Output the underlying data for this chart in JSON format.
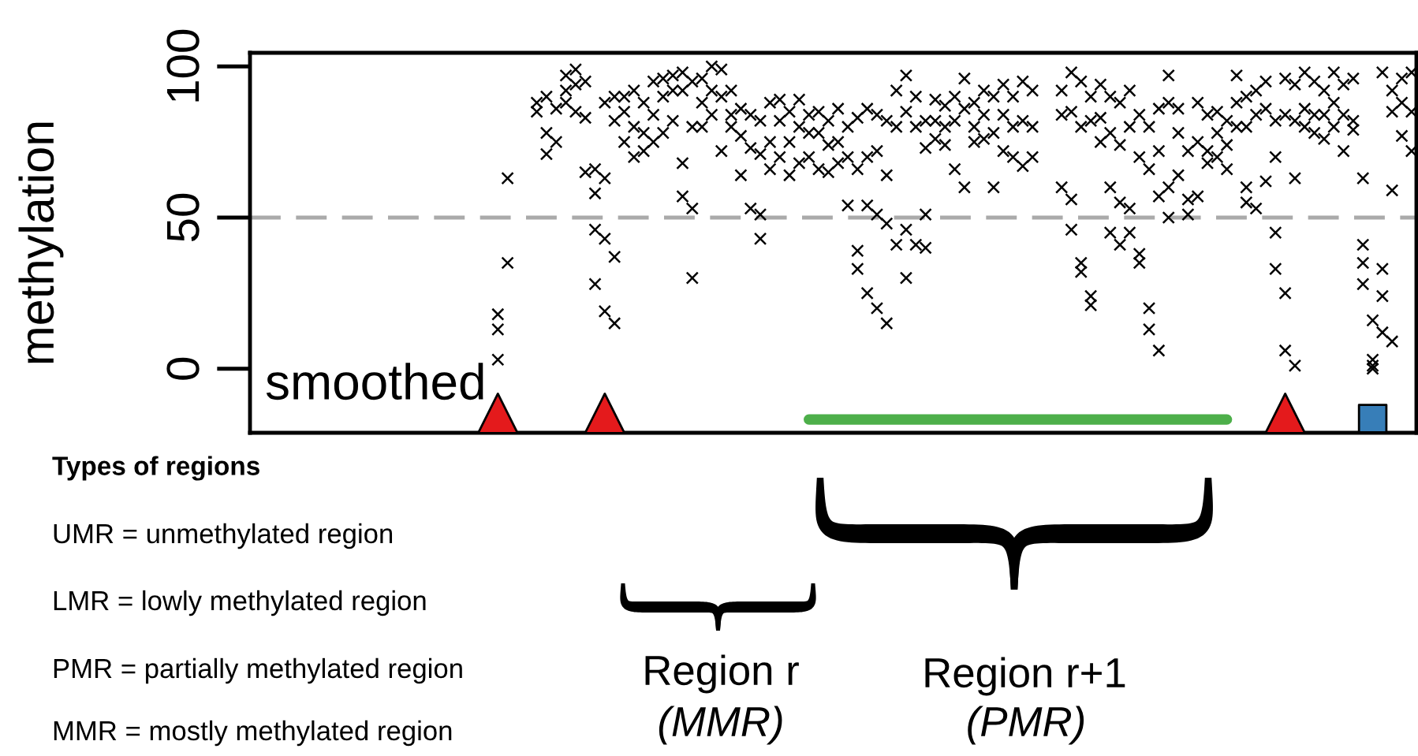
{
  "chart_data": {
    "type": "scatter",
    "ylabel": "methylation",
    "marker": "cross",
    "tick_labels": "y",
    "ylim": [
      -21.2,
      104.5
    ],
    "yticks": [
      0,
      50,
      100
    ],
    "categories": [
      null,
      null,
      null,
      null,
      null,
      null,
      null,
      null,
      null,
      null,
      null,
      null,
      null,
      null,
      null,
      null,
      null,
      null,
      null,
      null,
      null,
      null,
      null,
      null,
      null,
      null,
      null,
      null,
      null,
      null,
      null,
      null,
      null,
      null,
      null,
      null,
      null,
      null,
      null,
      null,
      null,
      null,
      null,
      null,
      null,
      null,
      null,
      null,
      null,
      null,
      null,
      null,
      null,
      null,
      null,
      null,
      null,
      null,
      null,
      null,
      null,
      null,
      null,
      null,
      null,
      null,
      null,
      null,
      null,
      null,
      null,
      null,
      null,
      null,
      null,
      null,
      null,
      null,
      null,
      null,
      null,
      null,
      null,
      null,
      null,
      null,
      null,
      null,
      null,
      null,
      null,
      null,
      null,
      null,
      null,
      null,
      null,
      null,
      null,
      null,
      null,
      null,
      null,
      null,
      null,
      null,
      null,
      null,
      null,
      null,
      null,
      null,
      null,
      null,
      null,
      null,
      null,
      null,
      null,
      null
    ],
    "series": [
      {
        "color": "#000000",
        "values": [
          null,
          null,
          null,
          null,
          null,
          null,
          null,
          null,
          null,
          null,
          null,
          null,
          null,
          null,
          null,
          null,
          null,
          null,
          null,
          null,
          null,
          null,
          null,
          null,
          null,
          18,
          63,
          null,
          null,
          88,
          90,
          86,
          97,
          99,
          95,
          66,
          88,
          90,
          90,
          92,
          88,
          95,
          96,
          97,
          98,
          95,
          96,
          100,
          99,
          92,
          86,
          84,
          82,
          88,
          89,
          85,
          89,
          84,
          85,
          82,
          86,
          80,
          83,
          86,
          84,
          82,
          92,
          97,
          90,
          82,
          89,
          87,
          90,
          96,
          88,
          92,
          90,
          94,
          90,
          95,
          92,
          null,
          null,
          92,
          98,
          95,
          90,
          94,
          90,
          88,
          92,
          84,
          80,
          86,
          97,
          86,
          72,
          88,
          84,
          85,
          82,
          97,
          90,
          92,
          95,
          82,
          96,
          94,
          98,
          95,
          92,
          98,
          94,
          96,
          63,
          16,
          98,
          92,
          96,
          98
        ]
      },
      {
        "color": "#000000",
        "values": [
          null,
          null,
          null,
          null,
          null,
          null,
          null,
          null,
          null,
          null,
          null,
          null,
          null,
          null,
          null,
          null,
          null,
          null,
          null,
          null,
          null,
          null,
          null,
          null,
          null,
          13,
          35,
          null,
          null,
          85,
          78,
          75,
          92,
          94,
          83,
          58,
          63,
          82,
          85,
          80,
          78,
          84,
          90,
          92,
          92,
          80,
          88,
          92,
          90,
          84,
          77,
          73,
          71,
          75,
          82,
          75,
          80,
          78,
          78,
          74,
          75,
          70,
          66,
          70,
          72,
          64,
          80,
          85,
          80,
          73,
          82,
          80,
          82,
          86,
          80,
          84,
          78,
          84,
          80,
          82,
          80,
          null,
          null,
          84,
          85,
          80,
          82,
          83,
          78,
          74,
          80,
          70,
          66,
          72,
          88,
          78,
          56,
          75,
          72,
          78,
          74,
          88,
          80,
          84,
          86,
          70,
          84,
          82,
          86,
          84,
          84,
          88,
          84,
          82,
          41,
          3,
          12,
          85,
          88,
          85
        ]
      },
      {
        "color": "#000000",
        "values": [
          null,
          null,
          null,
          null,
          null,
          null,
          null,
          null,
          null,
          null,
          null,
          null,
          null,
          null,
          null,
          null,
          null,
          null,
          null,
          null,
          null,
          null,
          null,
          null,
          null,
          3,
          null,
          null,
          null,
          null,
          71,
          null,
          88,
          85,
          65,
          46,
          43,
          37,
          75,
          70,
          72,
          75,
          78,
          82,
          68,
          53,
          80,
          84,
          72,
          80,
          64,
          53,
          51,
          66,
          70,
          64,
          68,
          70,
          66,
          65,
          68,
          54,
          39,
          54,
          51,
          48,
          41,
          46,
          41,
          51,
          76,
          74,
          66,
          60,
          75,
          76,
          60,
          72,
          70,
          67,
          70,
          null,
          null,
          60,
          56,
          35,
          24,
          75,
          60,
          55,
          53,
          38,
          20,
          57,
          60,
          64,
          51,
          57,
          68,
          70,
          66,
          80,
          60,
          53,
          62,
          45,
          25,
          1,
          80,
          78,
          76,
          80,
          72,
          79,
          35,
          1,
          33,
          9,
          77,
          72
        ]
      },
      {
        "color": "#000000",
        "values": [
          null,
          null,
          null,
          null,
          null,
          null,
          null,
          null,
          null,
          null,
          null,
          null,
          null,
          null,
          null,
          null,
          null,
          null,
          null,
          null,
          null,
          null,
          null,
          null,
          null,
          null,
          null,
          null,
          null,
          null,
          null,
          null,
          null,
          null,
          null,
          28,
          19,
          15,
          null,
          null,
          null,
          null,
          null,
          null,
          57,
          30,
          null,
          null,
          null,
          null,
          null,
          null,
          43,
          null,
          null,
          null,
          null,
          null,
          null,
          null,
          null,
          null,
          33,
          25,
          20,
          15,
          null,
          30,
          null,
          40,
          null,
          null,
          null,
          null,
          null,
          null,
          null,
          null,
          null,
          null,
          null,
          null,
          null,
          null,
          46,
          32,
          21,
          null,
          45,
          41,
          45,
          35,
          13,
          6,
          50,
          null,
          null,
          null,
          null,
          null,
          null,
          null,
          55,
          null,
          null,
          33,
          6,
          63,
          null,
          null,
          null,
          null,
          null,
          null,
          28,
          0,
          24,
          59,
          null,
          null
        ]
      },
      {
        "type": "scatter",
        "marker": "triangle",
        "color": "#e41a1c",
        "values": [
          null,
          null,
          null,
          null,
          null,
          null,
          null,
          null,
          null,
          null,
          null,
          null,
          null,
          null,
          null,
          null,
          null,
          null,
          null,
          null,
          null,
          null,
          null,
          null,
          null,
          -14.8,
          null,
          null,
          null,
          null,
          null,
          null,
          null,
          null,
          null,
          null,
          -14.8,
          null,
          null,
          null,
          null,
          null,
          null,
          null,
          null,
          null,
          null,
          null,
          null,
          null,
          null,
          null,
          null,
          null,
          null,
          null,
          null,
          null,
          null,
          null,
          null,
          null,
          null,
          null,
          null,
          null,
          null,
          null,
          null,
          null,
          null,
          null,
          null,
          null,
          null,
          null,
          null,
          null,
          null,
          null,
          null,
          null,
          null,
          null,
          null,
          null,
          null,
          null,
          null,
          null,
          null,
          null,
          null,
          null,
          null,
          null,
          null,
          null,
          null,
          null,
          null,
          null,
          null,
          null,
          null,
          null,
          -14.8,
          null,
          null,
          null,
          null,
          null,
          null,
          null,
          null,
          null,
          null,
          null,
          null,
          null
        ]
      },
      {
        "type": "line",
        "marker": "none",
        "color": "#4daf4a",
        "values": [
          null,
          null,
          null,
          null,
          null,
          null,
          null,
          null,
          null,
          null,
          null,
          null,
          null,
          null,
          null,
          null,
          null,
          null,
          null,
          null,
          null,
          null,
          null,
          null,
          null,
          null,
          null,
          null,
          null,
          null,
          null,
          null,
          null,
          null,
          null,
          null,
          null,
          null,
          null,
          null,
          null,
          null,
          null,
          null,
          null,
          null,
          null,
          null,
          null,
          null,
          null,
          null,
          null,
          null,
          null,
          null,
          null,
          -16.8,
          -16.8,
          -16.8,
          -16.8,
          -16.8,
          -16.8,
          -16.8,
          -16.8,
          -16.8,
          -16.8,
          -16.8,
          -16.8,
          -16.8,
          -16.8,
          -16.8,
          -16.8,
          -16.8,
          -16.8,
          -16.8,
          -16.8,
          -16.8,
          -16.8,
          -16.8,
          -16.8,
          -16.8,
          -16.8,
          -16.8,
          -16.8,
          -16.8,
          -16.8,
          -16.8,
          -16.8,
          -16.8,
          -16.8,
          -16.8,
          -16.8,
          -16.8,
          -16.8,
          -16.8,
          -16.8,
          -16.8,
          -16.8,
          -16.8,
          -16.8,
          null,
          null,
          null,
          null,
          null,
          null,
          null,
          null,
          null,
          null,
          null,
          null,
          null,
          null,
          null,
          null,
          null,
          null,
          null
        ]
      },
      {
        "type": "scatter",
        "marker": "square",
        "color": "#377eb8",
        "values": [
          null,
          null,
          null,
          null,
          null,
          null,
          null,
          null,
          null,
          null,
          null,
          null,
          null,
          null,
          null,
          null,
          null,
          null,
          null,
          null,
          null,
          null,
          null,
          null,
          null,
          null,
          null,
          null,
          null,
          null,
          null,
          null,
          null,
          null,
          null,
          null,
          null,
          null,
          null,
          null,
          null,
          null,
          null,
          null,
          null,
          null,
          null,
          null,
          null,
          null,
          null,
          null,
          null,
          null,
          null,
          null,
          null,
          null,
          null,
          null,
          null,
          null,
          null,
          null,
          null,
          null,
          null,
          null,
          null,
          null,
          null,
          null,
          null,
          null,
          null,
          null,
          null,
          null,
          null,
          null,
          null,
          null,
          null,
          null,
          null,
          null,
          null,
          null,
          null,
          null,
          null,
          null,
          null,
          null,
          null,
          null,
          null,
          null,
          null,
          null,
          null,
          null,
          null,
          null,
          null,
          null,
          null,
          null,
          null,
          null,
          null,
          null,
          null,
          null,
          null,
          -16.5,
          null,
          null,
          null,
          null
        ]
      }
    ],
    "ref_lines": [
      {
        "axis": "y",
        "value": 50,
        "color": "#aaaaaa",
        "line_style": "dashed"
      }
    ],
    "annotations": [
      "smoothed",
      "Types of regions",
      "UMR = unmethylated region",
      "LMR = lowly methylated region",
      "PMR = partially methylated region",
      "MMR = mostly methylated region",
      "Region r",
      "(MMR)",
      "Region r+1",
      "(PMR)"
    ]
  }
}
